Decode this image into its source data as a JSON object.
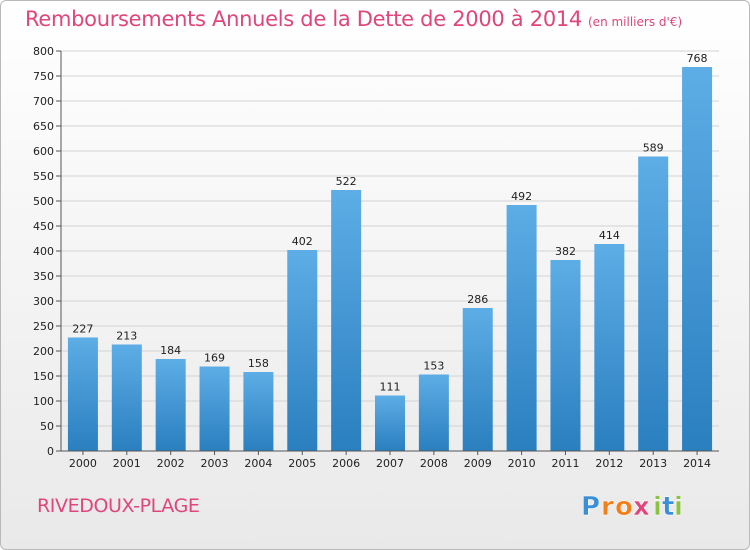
{
  "header": {
    "title": "Remboursements Annuels de la Dette de 2000 à 2014",
    "subtitle": "(en milliers d'€)"
  },
  "commune": "RIVEDOUX-PLAGE",
  "logo": {
    "text": "Proxiti",
    "letters": [
      "P",
      "r",
      "o",
      "x",
      "i",
      "t",
      "i"
    ],
    "colors": [
      "#3b8fd6",
      "#f07f1a",
      "#f07f1a",
      "#e0457b",
      "#8bc23f",
      "#3b8fd6",
      "#8bc23f"
    ]
  },
  "chart_data": {
    "type": "bar",
    "categories": [
      "2000",
      "2001",
      "2002",
      "2003",
      "2004",
      "2005",
      "2006",
      "2007",
      "2008",
      "2009",
      "2010",
      "2011",
      "2012",
      "2013",
      "2014"
    ],
    "values": [
      227,
      213,
      184,
      169,
      158,
      402,
      522,
      111,
      153,
      286,
      492,
      382,
      414,
      589,
      768
    ],
    "title": "Remboursements Annuels de la Dette de 2000 à 2014",
    "ylim": [
      0,
      800
    ],
    "yticks": [
      0,
      50,
      100,
      150,
      200,
      250,
      300,
      350,
      400,
      450,
      500,
      550,
      600,
      650,
      700,
      750,
      800
    ],
    "grid": true,
    "bar_color_top": "#5dade6",
    "bar_color_bottom": "#2a7fbf",
    "data_labels": true
  }
}
